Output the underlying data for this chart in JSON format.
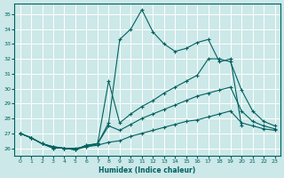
{
  "title": "",
  "xlabel": "Humidex (Indice chaleur)",
  "ylabel": "",
  "background_color": "#cce8e8",
  "grid_color": "#b0d8d8",
  "line_color": "#006060",
  "xlim": [
    -0.5,
    23.5
  ],
  "ylim": [
    25.5,
    35.7
  ],
  "xticks": [
    0,
    1,
    2,
    3,
    4,
    5,
    6,
    7,
    8,
    9,
    10,
    11,
    12,
    13,
    14,
    15,
    16,
    17,
    18,
    19,
    20,
    21,
    22,
    23
  ],
  "yticks": [
    26,
    27,
    28,
    29,
    30,
    31,
    32,
    33,
    34,
    35
  ],
  "series": [
    {
      "x": [
        0,
        1,
        2,
        3,
        4,
        5,
        6,
        7,
        8,
        9,
        10,
        11,
        12,
        13,
        14,
        15,
        16,
        17,
        18,
        19,
        20
      ],
      "y": [
        27.0,
        26.7,
        26.3,
        26.0,
        26.0,
        25.9,
        26.2,
        26.3,
        27.7,
        33.3,
        34.0,
        35.3,
        33.8,
        33.0,
        32.5,
        32.7,
        33.1,
        33.3,
        31.8,
        32.0,
        27.5
      ]
    },
    {
      "x": [
        0,
        1,
        2,
        3,
        4,
        5,
        6,
        7,
        8,
        9,
        10,
        11,
        12,
        13,
        14,
        15,
        16,
        17,
        18,
        19,
        20,
        21,
        22,
        23
      ],
      "y": [
        27.0,
        26.7,
        26.3,
        26.0,
        26.0,
        25.9,
        26.2,
        26.3,
        30.5,
        27.7,
        28.3,
        28.8,
        29.2,
        29.7,
        30.1,
        30.5,
        30.9,
        32.0,
        32.0,
        31.8,
        29.9,
        28.5,
        27.8,
        27.5
      ]
    },
    {
      "x": [
        0,
        1,
        2,
        3,
        4,
        5,
        6,
        7,
        8,
        9,
        10,
        11,
        12,
        13,
        14,
        15,
        16,
        17,
        18,
        19,
        20,
        21,
        22,
        23
      ],
      "y": [
        27.0,
        26.7,
        26.3,
        26.1,
        26.0,
        25.9,
        26.1,
        26.3,
        27.5,
        27.2,
        27.6,
        28.0,
        28.3,
        28.6,
        28.9,
        29.2,
        29.5,
        29.7,
        29.9,
        30.1,
        28.5,
        27.8,
        27.5,
        27.3
      ]
    },
    {
      "x": [
        0,
        1,
        2,
        3,
        4,
        5,
        6,
        7,
        8,
        9,
        10,
        11,
        12,
        13,
        14,
        15,
        16,
        17,
        18,
        19,
        20,
        21,
        22,
        23
      ],
      "y": [
        27.0,
        26.7,
        26.3,
        26.1,
        26.0,
        26.0,
        26.1,
        26.2,
        26.4,
        26.5,
        26.8,
        27.0,
        27.2,
        27.4,
        27.6,
        27.8,
        27.9,
        28.1,
        28.3,
        28.5,
        27.7,
        27.5,
        27.3,
        27.2
      ]
    }
  ]
}
